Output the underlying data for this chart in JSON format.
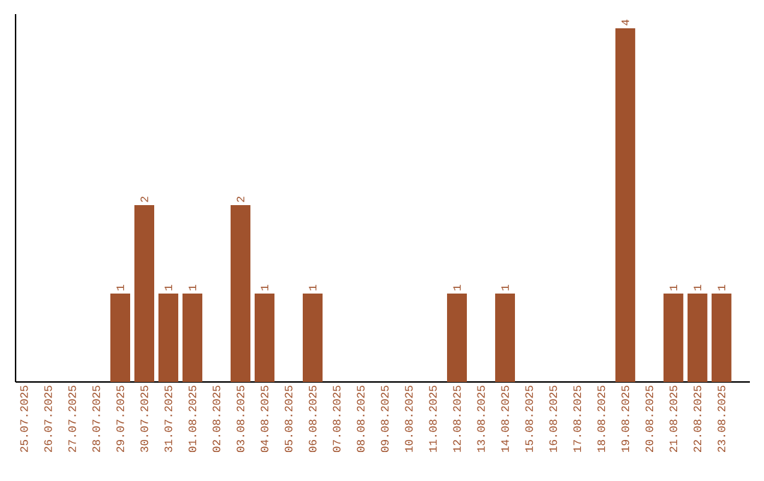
{
  "chart_data": {
    "type": "bar",
    "categories": [
      "25.07.2025",
      "26.07.2025",
      "27.07.2025",
      "28.07.2025",
      "29.07.2025",
      "30.07.2025",
      "31.07.2025",
      "01.08.2025",
      "02.08.2025",
      "03.08.2025",
      "04.08.2025",
      "05.08.2025",
      "06.08.2025",
      "07.08.2025",
      "08.08.2025",
      "09.08.2025",
      "10.08.2025",
      "11.08.2025",
      "12.08.2025",
      "13.08.2025",
      "14.08.2025",
      "15.08.2025",
      "16.08.2025",
      "17.08.2025",
      "18.08.2025",
      "19.08.2025",
      "20.08.2025",
      "21.08.2025",
      "22.08.2025",
      "23.08.2025"
    ],
    "values": [
      0,
      0,
      0,
      0,
      1,
      2,
      1,
      1,
      0,
      2,
      1,
      0,
      1,
      0,
      0,
      0,
      0,
      0,
      1,
      0,
      1,
      0,
      0,
      0,
      0,
      4,
      0,
      1,
      1,
      1
    ],
    "value_labels": [
      null,
      null,
      null,
      null,
      "1",
      "2",
      "1",
      "1",
      null,
      "2",
      "1",
      null,
      "1",
      null,
      null,
      null,
      null,
      null,
      "1",
      null,
      "1",
      null,
      null,
      null,
      null,
      "4",
      null,
      "1",
      "1",
      "1"
    ],
    "color": "#a0522d"
  }
}
